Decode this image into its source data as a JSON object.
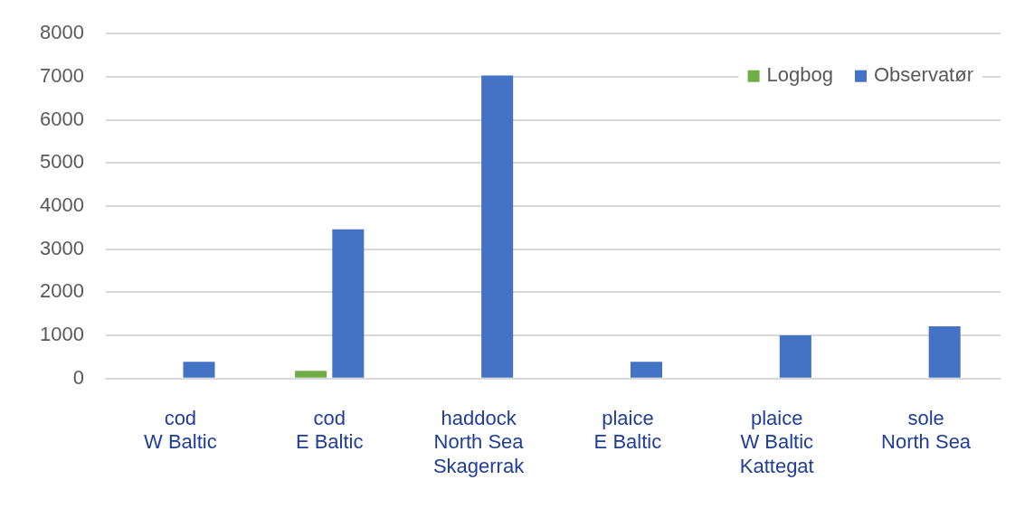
{
  "chart_data": {
    "type": "bar",
    "categories": [
      "cod\nW Baltic",
      "cod\nE Baltic",
      "haddock\nNorth Sea\nSkagerrak",
      "plaice\nE Baltic",
      "plaice\nW Baltic\nKattegat",
      "sole\nNorth Sea"
    ],
    "series": [
      {
        "name": "Logbog",
        "color": "#70ad47",
        "values": [
          0,
          180,
          0,
          0,
          0,
          0
        ]
      },
      {
        "name": "Observatør",
        "color": "#4472c4",
        "values": [
          390,
          3460,
          7030,
          390,
          1000,
          1210
        ]
      }
    ],
    "ylim": [
      0,
      8000
    ],
    "yticks": [
      0,
      1000,
      2000,
      3000,
      4000,
      5000,
      6000,
      7000,
      8000
    ],
    "grid": "y",
    "legend": "top right"
  }
}
